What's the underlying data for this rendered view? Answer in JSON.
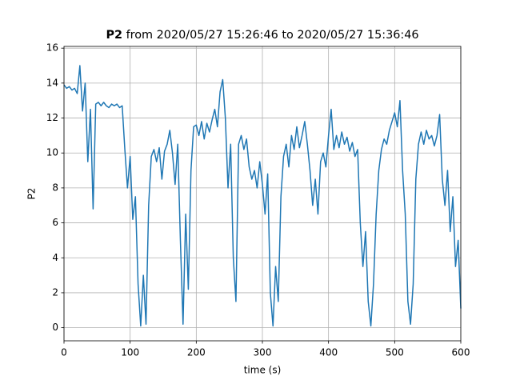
{
  "chart_data": {
    "type": "line",
    "title": "P2 from 2020/05/27 15:26:46 to 2020/05/27 15:36:46",
    "xlabel": "time (s)",
    "ylabel": "P2",
    "xlim": [
      0,
      600
    ],
    "xticks": [
      0,
      100,
      200,
      300,
      400,
      500,
      600
    ],
    "ylim": [
      -0.75,
      16.1
    ],
    "yticks": [
      0,
      2,
      4,
      6,
      8,
      10,
      12,
      14,
      16
    ],
    "grid": true,
    "series": [
      {
        "color": "#1f77b4",
        "x": [
          0,
          4,
          8,
          12,
          16,
          20,
          24,
          28,
          32,
          36,
          40,
          44,
          48,
          52,
          56,
          60,
          64,
          68,
          72,
          76,
          80,
          84,
          88,
          92,
          96,
          100,
          104,
          108,
          112,
          116,
          120,
          124,
          128,
          132,
          136,
          140,
          144,
          148,
          152,
          156,
          160,
          164,
          168,
          172,
          176,
          180,
          184,
          188,
          192,
          196,
          200,
          204,
          208,
          212,
          216,
          220,
          224,
          228,
          232,
          236,
          240,
          244,
          248,
          252,
          256,
          260,
          264,
          268,
          272,
          276,
          280,
          284,
          288,
          292,
          296,
          300,
          304,
          308,
          312,
          316,
          320,
          324,
          328,
          332,
          336,
          340,
          344,
          348,
          352,
          356,
          360,
          364,
          368,
          372,
          376,
          380,
          384,
          388,
          392,
          396,
          400,
          404,
          408,
          412,
          416,
          420,
          424,
          428,
          432,
          436,
          440,
          444,
          448,
          452,
          456,
          460,
          464,
          468,
          472,
          476,
          480,
          484,
          488,
          492,
          496,
          500,
          504,
          508,
          512,
          516,
          520,
          524,
          528,
          532,
          536,
          540,
          544,
          548,
          552,
          556,
          560,
          564,
          568,
          572,
          576,
          580,
          584,
          588,
          592,
          596,
          600
        ],
        "values": [
          13.9,
          13.7,
          13.8,
          13.6,
          13.7,
          13.4,
          15.0,
          12.4,
          14.0,
          9.5,
          12.5,
          6.8,
          12.8,
          12.9,
          12.7,
          12.9,
          12.7,
          12.6,
          12.8,
          12.7,
          12.8,
          12.6,
          12.7,
          10.2,
          8.0,
          9.8,
          6.2,
          7.5,
          2.5,
          0.1,
          3.0,
          0.2,
          7.0,
          9.8,
          10.2,
          9.5,
          10.3,
          8.5,
          10.1,
          10.5,
          11.3,
          10.0,
          8.2,
          10.5,
          5.0,
          0.2,
          6.5,
          2.2,
          9.0,
          11.5,
          11.6,
          11.0,
          11.8,
          10.8,
          11.7,
          11.2,
          11.9,
          12.5,
          11.5,
          13.5,
          14.2,
          12.0,
          8.0,
          10.5,
          4.0,
          1.5,
          10.5,
          11.0,
          10.2,
          10.8,
          9.2,
          8.5,
          9.0,
          8.0,
          9.5,
          8.2,
          6.5,
          8.8,
          2.0,
          0.1,
          3.5,
          1.5,
          7.5,
          9.8,
          10.5,
          9.2,
          11.0,
          10.2,
          11.5,
          10.3,
          11.0,
          11.8,
          10.5,
          9.0,
          7.0,
          8.5,
          6.5,
          9.5,
          10.0,
          9.2,
          11.0,
          12.5,
          10.2,
          11.0,
          10.3,
          11.2,
          10.5,
          10.9,
          10.1,
          10.6,
          9.8,
          10.2,
          6.0,
          3.5,
          5.5,
          1.5,
          0.1,
          2.5,
          6.5,
          9.0,
          10.2,
          10.8,
          10.5,
          11.3,
          11.8,
          12.3,
          11.5,
          13.0,
          9.0,
          6.5,
          1.5,
          0.2,
          2.5,
          8.5,
          10.5,
          11.2,
          10.5,
          11.3,
          10.8,
          11.0,
          10.4,
          11.0,
          12.2,
          8.5,
          7.0,
          9.0,
          5.5,
          7.5,
          3.5,
          5.0,
          1.1
        ]
      }
    ]
  }
}
